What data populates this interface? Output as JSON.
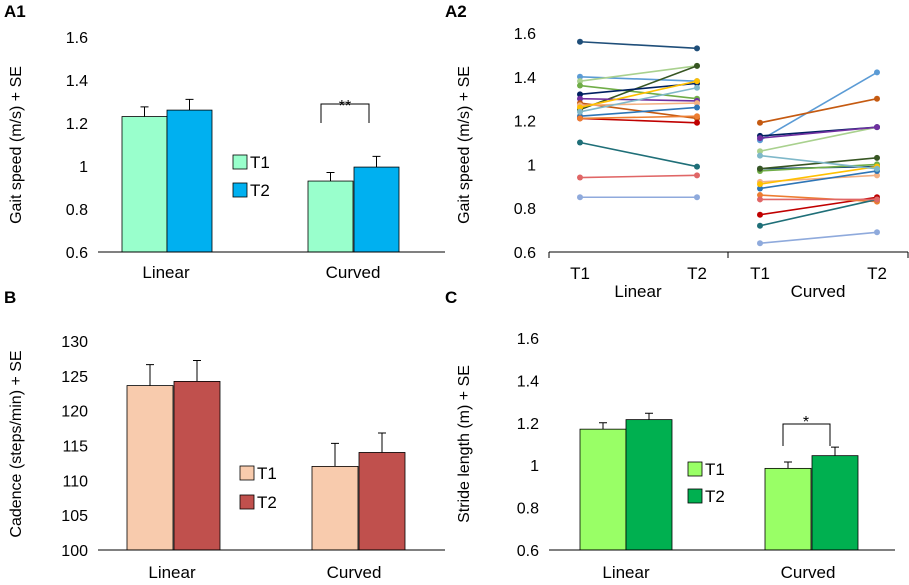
{
  "chart_data": [
    {
      "id": "A1",
      "panel_label": "A1",
      "type": "bar",
      "ylabel": "Gait speed (m/s) + SE",
      "ylim": [
        0.6,
        1.6
      ],
      "yticks": [
        "0.6",
        "0.8",
        "1",
        "1.2",
        "1.4",
        "1.6"
      ],
      "categories": [
        "Linear",
        "Curved"
      ],
      "series": [
        {
          "name": "T1",
          "color": "#99ffcc",
          "values": [
            1.23,
            0.93
          ],
          "errors": [
            0.045,
            0.04
          ]
        },
        {
          "name": "T2",
          "color": "#00b0f0",
          "values": [
            1.26,
            0.995
          ],
          "errors": [
            0.05,
            0.05
          ]
        }
      ],
      "annotations": [
        {
          "category": "Curved",
          "text": "**"
        }
      ]
    },
    {
      "id": "A2",
      "panel_label": "A2",
      "type": "line",
      "ylabel": "Gait speed (m/s) + SE",
      "ylim": [
        0.6,
        1.6
      ],
      "yticks": [
        "0.6",
        "0.8",
        "1",
        "1.2",
        "1.4",
        "1.6"
      ],
      "x_ticks": [
        "T1",
        "T2",
        "T1",
        "T2"
      ],
      "groups": [
        "Linear",
        "Curved"
      ],
      "series": [
        {
          "color": "#1f4e79",
          "linear": [
            1.56,
            1.53
          ],
          "curved": [
            0.98,
            0.99
          ]
        },
        {
          "color": "#5b9bd5",
          "linear": [
            1.4,
            1.38
          ],
          "curved": [
            1.11,
            1.42
          ]
        },
        {
          "color": "#a9d18e",
          "linear": [
            1.38,
            1.45
          ],
          "curved": [
            1.06,
            1.17
          ]
        },
        {
          "color": "#70ad47",
          "linear": [
            1.36,
            1.3
          ],
          "curved": [
            0.97,
            1.0
          ]
        },
        {
          "color": "#375623",
          "linear": [
            1.25,
            1.45
          ],
          "curved": [
            0.98,
            1.03
          ]
        },
        {
          "color": "#002060",
          "linear": [
            1.32,
            1.37
          ],
          "curved": [
            1.13,
            1.17
          ]
        },
        {
          "color": "#7030a0",
          "linear": [
            1.3,
            1.29
          ],
          "curved": [
            1.12,
            1.17
          ]
        },
        {
          "color": "#c55a11",
          "linear": [
            1.28,
            1.21
          ],
          "curved": [
            1.19,
            1.3
          ]
        },
        {
          "color": "#f4b183",
          "linear": [
            1.27,
            1.28
          ],
          "curved": [
            0.92,
            0.95
          ]
        },
        {
          "color": "#2e75b6",
          "linear": [
            1.22,
            1.26
          ],
          "curved": [
            0.89,
            0.97
          ]
        },
        {
          "color": "#c00000",
          "linear": [
            1.21,
            1.19
          ],
          "curved": [
            0.77,
            0.85
          ]
        },
        {
          "color": "#ed7d31",
          "linear": [
            1.21,
            1.22
          ],
          "curved": [
            0.86,
            0.83
          ]
        },
        {
          "color": "#ffc000",
          "linear": [
            1.26,
            1.38
          ],
          "curved": [
            0.91,
            0.99
          ]
        },
        {
          "color": "#7fb8c9",
          "linear": [
            1.24,
            1.35
          ],
          "curved": [
            1.04,
            0.98
          ]
        },
        {
          "color": "#1f6f78",
          "linear": [
            1.1,
            0.99
          ],
          "curved": [
            0.72,
            0.84
          ]
        },
        {
          "color": "#e06666",
          "linear": [
            0.94,
            0.95
          ],
          "curved": [
            0.84,
            0.84
          ]
        },
        {
          "color": "#8faadc",
          "linear": [
            0.85,
            0.85
          ],
          "curved": [
            0.64,
            0.69
          ]
        }
      ]
    },
    {
      "id": "B",
      "panel_label": "B",
      "type": "bar",
      "ylabel": "Cadence (steps/min) + SE",
      "ylim": [
        100,
        130
      ],
      "yticks": [
        "100",
        "105",
        "110",
        "115",
        "120",
        "125",
        "130"
      ],
      "categories": [
        "Linear",
        "Curved"
      ],
      "series": [
        {
          "name": "T1",
          "color": "#f8cbad",
          "values": [
            123.6,
            112.0
          ],
          "errors": [
            3.0,
            3.3
          ]
        },
        {
          "name": "T2",
          "color": "#c0504d",
          "values": [
            124.2,
            114.0
          ],
          "errors": [
            3.0,
            2.8
          ]
        }
      ],
      "annotations": []
    },
    {
      "id": "C",
      "panel_label": "C",
      "type": "bar",
      "ylabel": "Stride length (m) + SE",
      "ylim": [
        0.6,
        1.6
      ],
      "yticks": [
        "0.6",
        "0.8",
        "1",
        "1.2",
        "1.4",
        "1.6"
      ],
      "categories": [
        "Linear",
        "Curved"
      ],
      "series": [
        {
          "name": "T1",
          "color": "#99ff66",
          "values": [
            1.17,
            0.985
          ],
          "errors": [
            0.03,
            0.03
          ]
        },
        {
          "name": "T2",
          "color": "#00b050",
          "values": [
            1.215,
            1.045
          ],
          "errors": [
            0.03,
            0.04
          ]
        }
      ],
      "annotations": [
        {
          "category": "Curved",
          "text": "*"
        }
      ]
    }
  ]
}
